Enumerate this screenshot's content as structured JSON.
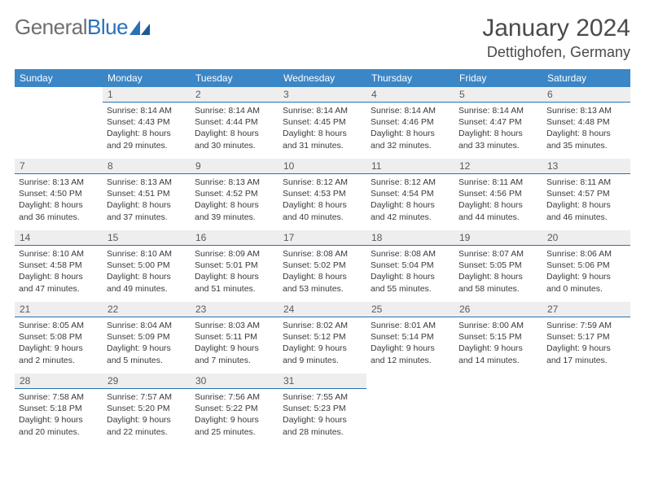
{
  "logo": {
    "word1": "General",
    "word2": "Blue"
  },
  "title": "January 2024",
  "location": "Dettighofen, Germany",
  "colors": {
    "header_bg": "#3b86c6",
    "header_text": "#ffffff",
    "daynum_bg": "#eeeeee",
    "rule": "#2a71b8",
    "text": "#3a3a3a",
    "logo_grey": "#6f6f6f",
    "logo_blue": "#2a71b8"
  },
  "typography": {
    "title_fontsize": 30,
    "location_fontsize": 18,
    "th_fontsize": 12,
    "cell_fontsize": 10.5
  },
  "daysOfWeek": [
    "Sunday",
    "Monday",
    "Tuesday",
    "Wednesday",
    "Thursday",
    "Friday",
    "Saturday"
  ],
  "weeks": [
    [
      null,
      {
        "n": "1",
        "sr": "Sunrise: 8:14 AM",
        "ss": "Sunset: 4:43 PM",
        "d1": "Daylight: 8 hours",
        "d2": "and 29 minutes."
      },
      {
        "n": "2",
        "sr": "Sunrise: 8:14 AM",
        "ss": "Sunset: 4:44 PM",
        "d1": "Daylight: 8 hours",
        "d2": "and 30 minutes."
      },
      {
        "n": "3",
        "sr": "Sunrise: 8:14 AM",
        "ss": "Sunset: 4:45 PM",
        "d1": "Daylight: 8 hours",
        "d2": "and 31 minutes."
      },
      {
        "n": "4",
        "sr": "Sunrise: 8:14 AM",
        "ss": "Sunset: 4:46 PM",
        "d1": "Daylight: 8 hours",
        "d2": "and 32 minutes."
      },
      {
        "n": "5",
        "sr": "Sunrise: 8:14 AM",
        "ss": "Sunset: 4:47 PM",
        "d1": "Daylight: 8 hours",
        "d2": "and 33 minutes."
      },
      {
        "n": "6",
        "sr": "Sunrise: 8:13 AM",
        "ss": "Sunset: 4:48 PM",
        "d1": "Daylight: 8 hours",
        "d2": "and 35 minutes."
      }
    ],
    [
      {
        "n": "7",
        "sr": "Sunrise: 8:13 AM",
        "ss": "Sunset: 4:50 PM",
        "d1": "Daylight: 8 hours",
        "d2": "and 36 minutes."
      },
      {
        "n": "8",
        "sr": "Sunrise: 8:13 AM",
        "ss": "Sunset: 4:51 PM",
        "d1": "Daylight: 8 hours",
        "d2": "and 37 minutes."
      },
      {
        "n": "9",
        "sr": "Sunrise: 8:13 AM",
        "ss": "Sunset: 4:52 PM",
        "d1": "Daylight: 8 hours",
        "d2": "and 39 minutes."
      },
      {
        "n": "10",
        "sr": "Sunrise: 8:12 AM",
        "ss": "Sunset: 4:53 PM",
        "d1": "Daylight: 8 hours",
        "d2": "and 40 minutes."
      },
      {
        "n": "11",
        "sr": "Sunrise: 8:12 AM",
        "ss": "Sunset: 4:54 PM",
        "d1": "Daylight: 8 hours",
        "d2": "and 42 minutes."
      },
      {
        "n": "12",
        "sr": "Sunrise: 8:11 AM",
        "ss": "Sunset: 4:56 PM",
        "d1": "Daylight: 8 hours",
        "d2": "and 44 minutes."
      },
      {
        "n": "13",
        "sr": "Sunrise: 8:11 AM",
        "ss": "Sunset: 4:57 PM",
        "d1": "Daylight: 8 hours",
        "d2": "and 46 minutes."
      }
    ],
    [
      {
        "n": "14",
        "sr": "Sunrise: 8:10 AM",
        "ss": "Sunset: 4:58 PM",
        "d1": "Daylight: 8 hours",
        "d2": "and 47 minutes."
      },
      {
        "n": "15",
        "sr": "Sunrise: 8:10 AM",
        "ss": "Sunset: 5:00 PM",
        "d1": "Daylight: 8 hours",
        "d2": "and 49 minutes."
      },
      {
        "n": "16",
        "sr": "Sunrise: 8:09 AM",
        "ss": "Sunset: 5:01 PM",
        "d1": "Daylight: 8 hours",
        "d2": "and 51 minutes."
      },
      {
        "n": "17",
        "sr": "Sunrise: 8:08 AM",
        "ss": "Sunset: 5:02 PM",
        "d1": "Daylight: 8 hours",
        "d2": "and 53 minutes."
      },
      {
        "n": "18",
        "sr": "Sunrise: 8:08 AM",
        "ss": "Sunset: 5:04 PM",
        "d1": "Daylight: 8 hours",
        "d2": "and 55 minutes."
      },
      {
        "n": "19",
        "sr": "Sunrise: 8:07 AM",
        "ss": "Sunset: 5:05 PM",
        "d1": "Daylight: 8 hours",
        "d2": "and 58 minutes."
      },
      {
        "n": "20",
        "sr": "Sunrise: 8:06 AM",
        "ss": "Sunset: 5:06 PM",
        "d1": "Daylight: 9 hours",
        "d2": "and 0 minutes."
      }
    ],
    [
      {
        "n": "21",
        "sr": "Sunrise: 8:05 AM",
        "ss": "Sunset: 5:08 PM",
        "d1": "Daylight: 9 hours",
        "d2": "and 2 minutes."
      },
      {
        "n": "22",
        "sr": "Sunrise: 8:04 AM",
        "ss": "Sunset: 5:09 PM",
        "d1": "Daylight: 9 hours",
        "d2": "and 5 minutes."
      },
      {
        "n": "23",
        "sr": "Sunrise: 8:03 AM",
        "ss": "Sunset: 5:11 PM",
        "d1": "Daylight: 9 hours",
        "d2": "and 7 minutes."
      },
      {
        "n": "24",
        "sr": "Sunrise: 8:02 AM",
        "ss": "Sunset: 5:12 PM",
        "d1": "Daylight: 9 hours",
        "d2": "and 9 minutes."
      },
      {
        "n": "25",
        "sr": "Sunrise: 8:01 AM",
        "ss": "Sunset: 5:14 PM",
        "d1": "Daylight: 9 hours",
        "d2": "and 12 minutes."
      },
      {
        "n": "26",
        "sr": "Sunrise: 8:00 AM",
        "ss": "Sunset: 5:15 PM",
        "d1": "Daylight: 9 hours",
        "d2": "and 14 minutes."
      },
      {
        "n": "27",
        "sr": "Sunrise: 7:59 AM",
        "ss": "Sunset: 5:17 PM",
        "d1": "Daylight: 9 hours",
        "d2": "and 17 minutes."
      }
    ],
    [
      {
        "n": "28",
        "sr": "Sunrise: 7:58 AM",
        "ss": "Sunset: 5:18 PM",
        "d1": "Daylight: 9 hours",
        "d2": "and 20 minutes."
      },
      {
        "n": "29",
        "sr": "Sunrise: 7:57 AM",
        "ss": "Sunset: 5:20 PM",
        "d1": "Daylight: 9 hours",
        "d2": "and 22 minutes."
      },
      {
        "n": "30",
        "sr": "Sunrise: 7:56 AM",
        "ss": "Sunset: 5:22 PM",
        "d1": "Daylight: 9 hours",
        "d2": "and 25 minutes."
      },
      {
        "n": "31",
        "sr": "Sunrise: 7:55 AM",
        "ss": "Sunset: 5:23 PM",
        "d1": "Daylight: 9 hours",
        "d2": "and 28 minutes."
      },
      null,
      null,
      null
    ]
  ]
}
